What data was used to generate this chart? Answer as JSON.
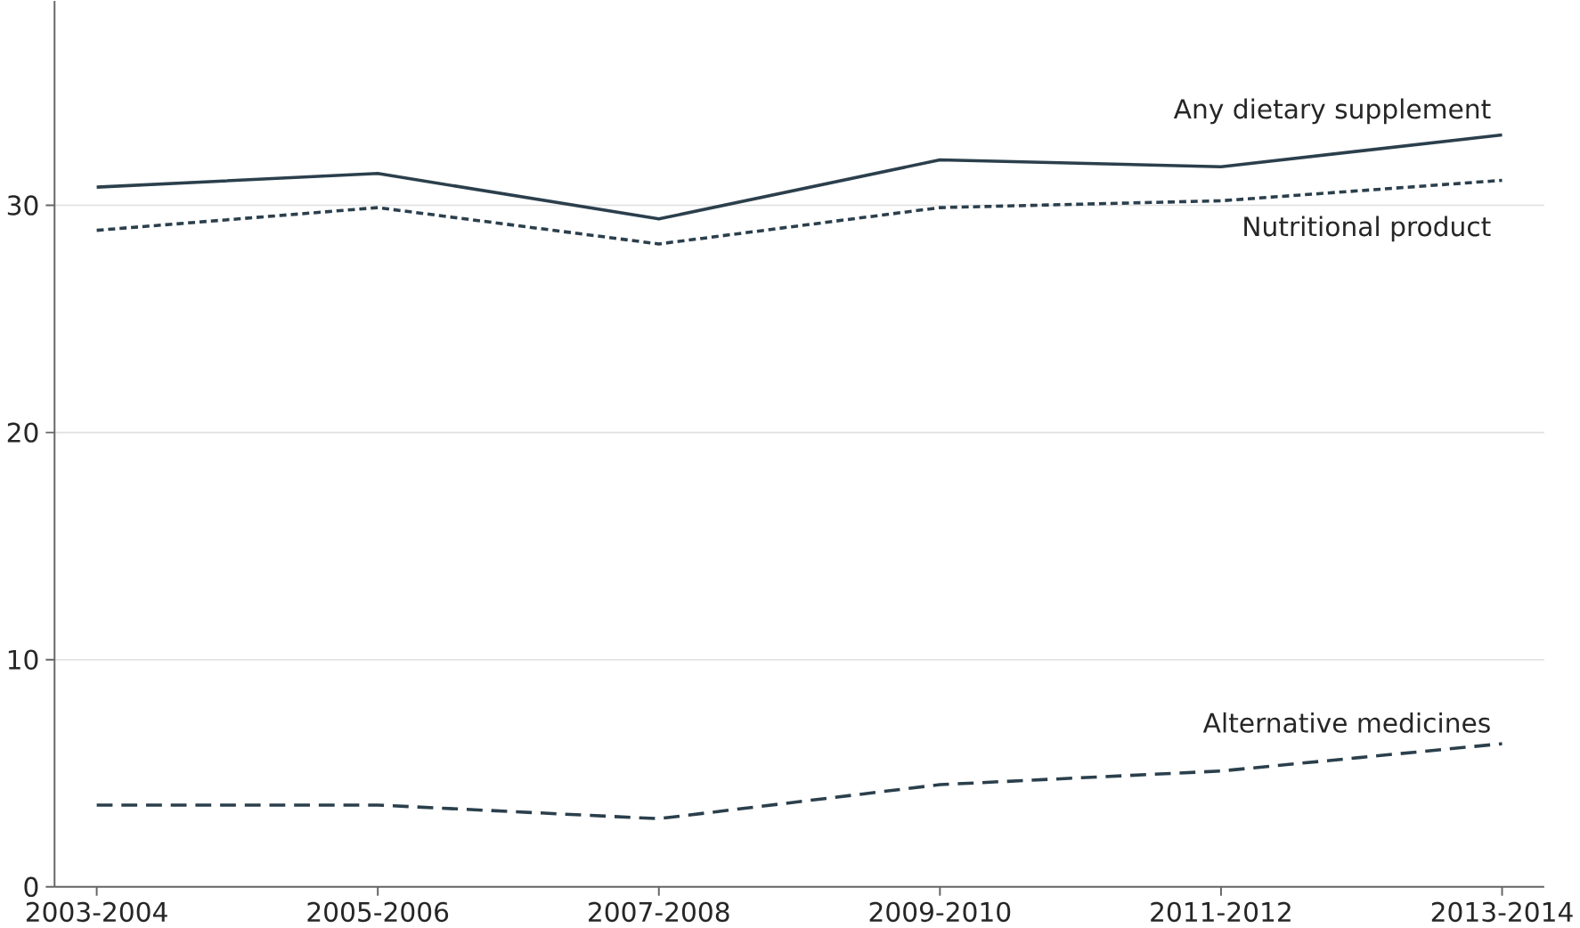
{
  "chart_data": {
    "type": "line",
    "categories": [
      "2003-2004",
      "2005-2006",
      "2007-2008",
      "2009-2010",
      "2011-2012",
      "2013-2014"
    ],
    "series": [
      {
        "name": "Any dietary supplement",
        "color": "#2b3f4c",
        "line_style": "solid",
        "values": [
          30.8,
          31.4,
          29.4,
          32.0,
          31.7,
          33.1
        ]
      },
      {
        "name": "Nutritional product",
        "color": "#2b3f4c",
        "line_style": "dotted",
        "values": [
          28.9,
          29.9,
          28.3,
          29.9,
          30.2,
          31.1
        ]
      },
      {
        "name": "Alternative medicines",
        "color": "#2b3f4c",
        "line_style": "dashed",
        "values": [
          3.6,
          3.6,
          3.0,
          4.5,
          5.1,
          6.3
        ]
      }
    ],
    "ylim": [
      0,
      39
    ],
    "yticks": [
      0,
      10,
      20,
      30
    ],
    "grid": "y",
    "legend": false,
    "marker": "none"
  }
}
